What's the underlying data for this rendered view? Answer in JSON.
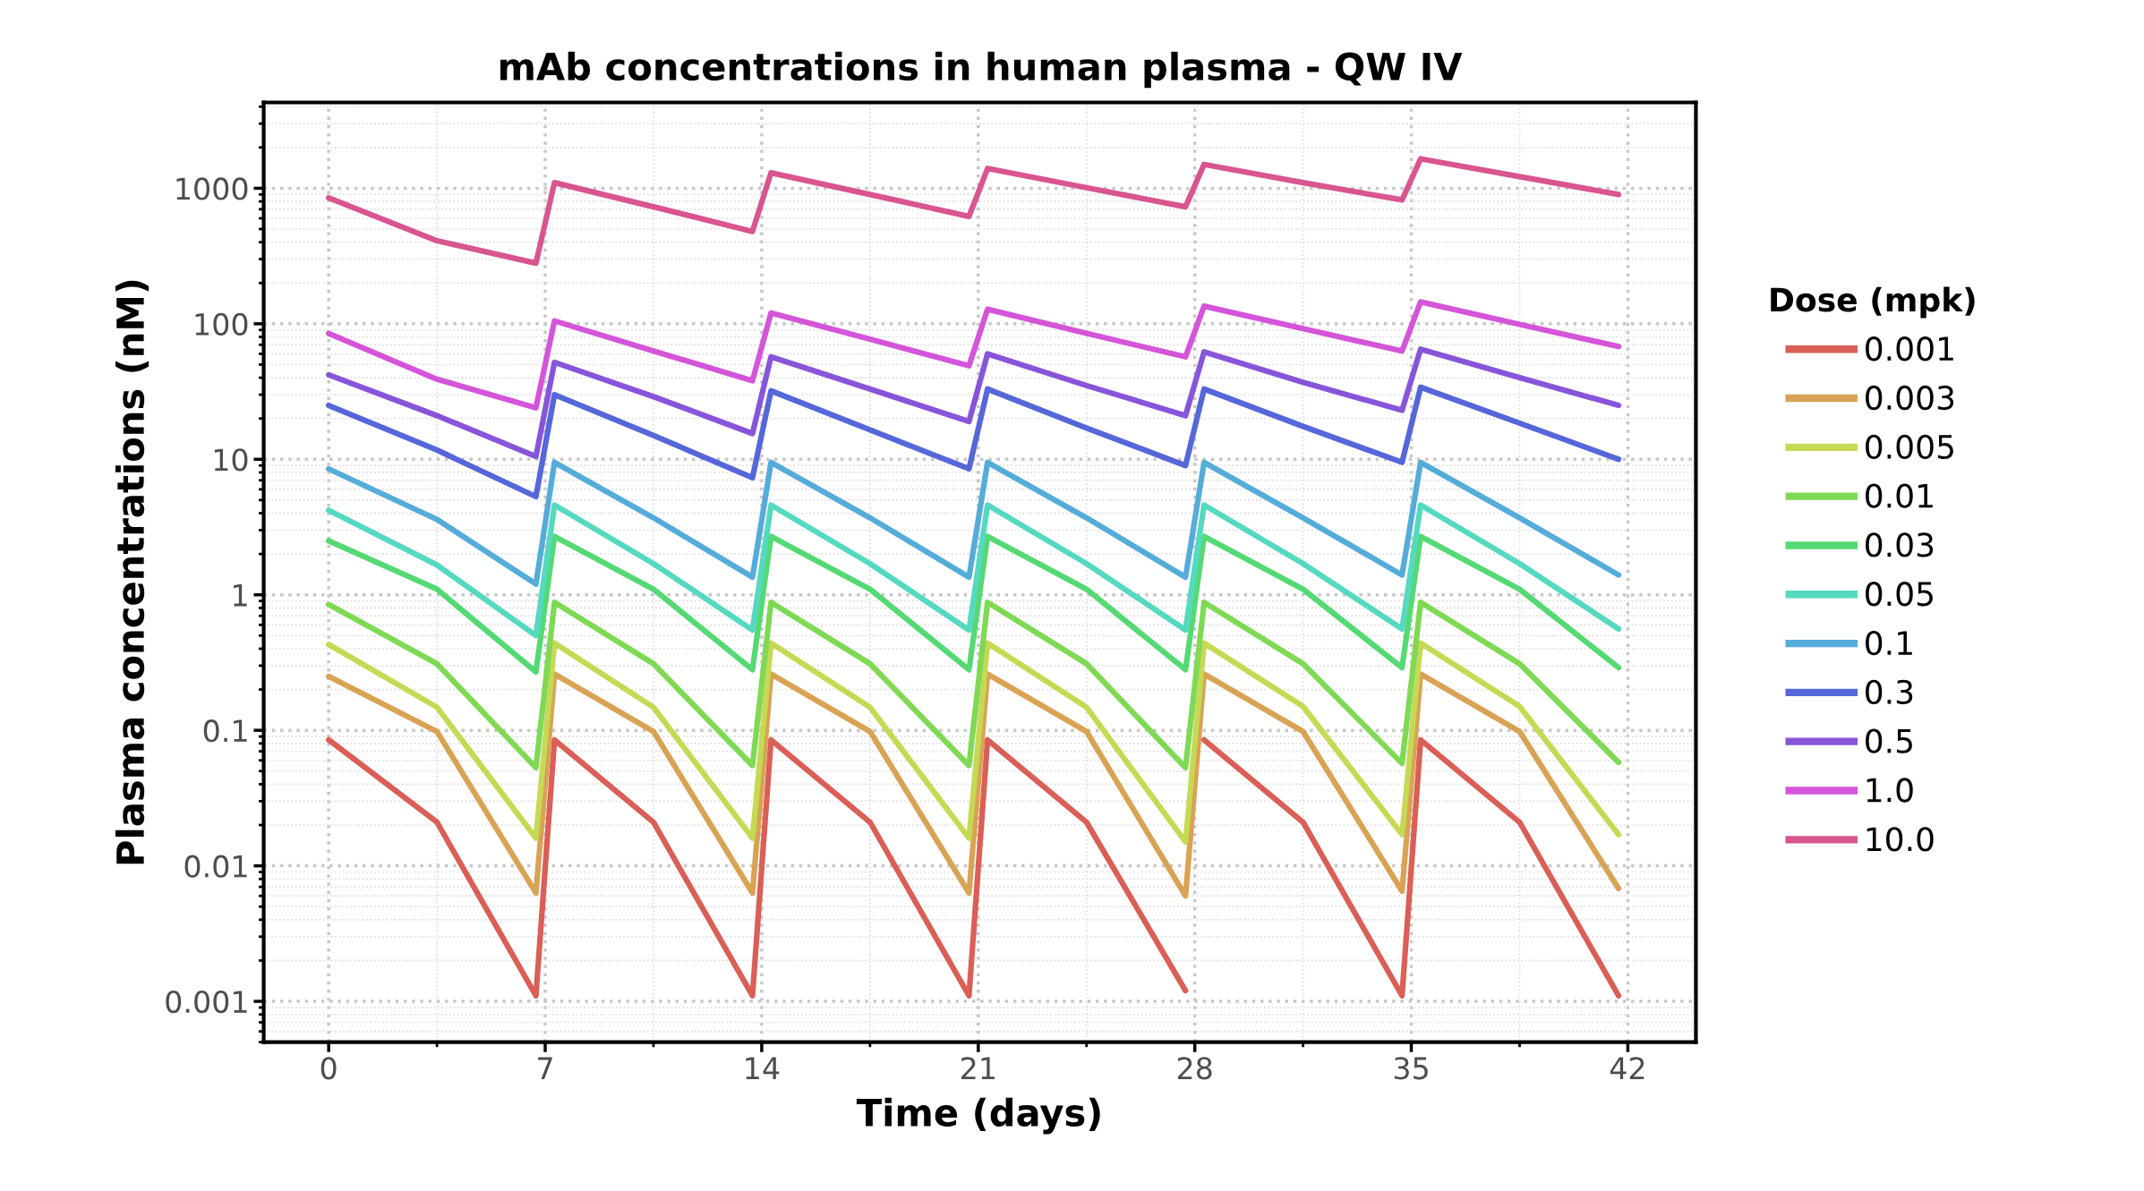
{
  "chart_data": {
    "type": "line",
    "title": "mAb concentrations in human plasma - QW IV",
    "xlabel": "Time (days)",
    "ylabel": "Plasma concentrations (nM)",
    "legend_title": "Dose (mpk)",
    "legend": "right",
    "grid": true,
    "log": "y",
    "line_style": "solid",
    "marker": "none",
    "x": [
      0,
      3.5,
      6.7,
      7.3,
      10.5,
      13.7,
      14.3,
      17.5,
      20.7,
      21.3,
      24.5,
      27.7,
      28.3,
      31.5,
      34.7,
      35.3,
      38.5,
      41.7
    ],
    "xlim": [
      -2.1,
      44.2
    ],
    "xticks": [
      0,
      7,
      14,
      21,
      28,
      35,
      42
    ],
    "ylim": [
      0.0005,
      4300
    ],
    "yticks": [
      0.001,
      0.01,
      0.1,
      1,
      10,
      100,
      1000
    ],
    "series": [
      {
        "name": "0.001",
        "color": "#d95f57",
        "x": [
          0,
          3.5,
          6.7,
          7.3,
          10.5,
          13.7,
          14.3,
          17.5,
          20.7,
          21.3,
          24.5,
          27.7,
          28.0,
          28.3,
          31.5,
          34.7,
          35.3,
          38.5,
          41.7
        ],
        "values": [
          0.085,
          0.021,
          0.0011,
          0.085,
          0.021,
          0.0011,
          0.085,
          0.021,
          0.0011,
          0.085,
          0.021,
          0.0012,
          null,
          0.085,
          0.021,
          0.0011,
          0.085,
          0.021,
          0.0011
        ]
      },
      {
        "name": "0.003",
        "color": "#d9a355",
        "values": [
          0.25,
          0.098,
          0.0063,
          0.26,
          0.098,
          0.0063,
          0.26,
          0.098,
          0.0063,
          0.26,
          0.098,
          0.006,
          0.26,
          0.098,
          0.0065,
          0.26,
          0.098,
          0.0068
        ]
      },
      {
        "name": "0.005",
        "color": "#c6d955",
        "values": [
          0.43,
          0.148,
          0.016,
          0.44,
          0.148,
          0.016,
          0.44,
          0.148,
          0.016,
          0.44,
          0.148,
          0.015,
          0.44,
          0.15,
          0.017,
          0.44,
          0.15,
          0.017
        ]
      },
      {
        "name": "0.01",
        "color": "#7fd955",
        "values": [
          0.85,
          0.31,
          0.053,
          0.88,
          0.31,
          0.055,
          0.88,
          0.31,
          0.055,
          0.88,
          0.31,
          0.053,
          0.88,
          0.31,
          0.057,
          0.88,
          0.31,
          0.058
        ]
      },
      {
        "name": "0.03",
        "color": "#55d974",
        "values": [
          2.5,
          1.1,
          0.27,
          2.7,
          1.1,
          0.28,
          2.7,
          1.1,
          0.28,
          2.7,
          1.1,
          0.28,
          2.7,
          1.1,
          0.29,
          2.7,
          1.1,
          0.29
        ]
      },
      {
        "name": "0.05",
        "color": "#55d9c0",
        "values": [
          4.2,
          1.66,
          0.5,
          4.6,
          1.7,
          0.55,
          4.6,
          1.7,
          0.55,
          4.6,
          1.7,
          0.55,
          4.6,
          1.7,
          0.56,
          4.6,
          1.7,
          0.56
        ]
      },
      {
        "name": "0.1",
        "color": "#55acd9",
        "values": [
          8.5,
          3.6,
          1.2,
          9.5,
          3.7,
          1.35,
          9.5,
          3.7,
          1.35,
          9.5,
          3.7,
          1.35,
          9.5,
          3.7,
          1.4,
          9.5,
          3.7,
          1.4
        ]
      },
      {
        "name": "0.3",
        "color": "#5567d9",
        "values": [
          25,
          11.7,
          5.3,
          30,
          15,
          7.3,
          32,
          16.5,
          8.5,
          33,
          17,
          9,
          33,
          17.5,
          9.5,
          34,
          18.5,
          10
        ]
      },
      {
        "name": "0.5",
        "color": "#8755d9",
        "values": [
          42,
          21,
          10.5,
          52,
          29,
          15.5,
          57,
          33,
          19,
          60,
          35,
          21,
          62,
          37,
          23,
          65,
          40,
          25
        ]
      },
      {
        "name": "1.0",
        "color": "#d455d9",
        "values": [
          85,
          39,
          24,
          105,
          63,
          38,
          120,
          77,
          49,
          128,
          85,
          57,
          135,
          92,
          63,
          145,
          99,
          68
        ]
      },
      {
        "name": "10.0",
        "color": "#d9558f",
        "values": [
          850,
          410,
          280,
          1100,
          730,
          480,
          1300,
          900,
          620,
          1400,
          1010,
          730,
          1500,
          1100,
          820,
          1650,
          1220,
          900
        ]
      }
    ]
  }
}
